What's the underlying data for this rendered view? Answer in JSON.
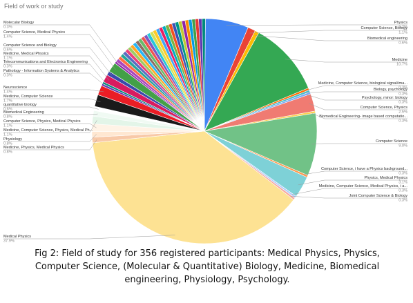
{
  "chart_data": {
    "type": "pie",
    "title": "Field of work or study",
    "slices": [
      {
        "label": "Physics",
        "percent": 6.2,
        "color": "#4285f4",
        "side": "right"
      },
      {
        "label": "Computer Science, Biology",
        "percent": 1.1,
        "color": "#ea4335",
        "side": "right"
      },
      {
        "label": "Biomedical engineering",
        "percent": 0.6,
        "color": "#fbbc04",
        "side": "right"
      },
      {
        "label": "Medicine",
        "percent": 10.7,
        "color": "#34a853",
        "side": "right"
      },
      {
        "label": "Medicine, Computer Science, biological signal/ima...",
        "percent": 0.3,
        "color": "#ff6d01",
        "side": "right"
      },
      {
        "label": "Biology, psychology",
        "percent": 0.3,
        "color": "#46bdc6",
        "side": "right"
      },
      {
        "label": "Psychology, minor: biology",
        "percent": 0.3,
        "color": "#7baaf7",
        "side": "right"
      },
      {
        "label": "Computer Science, Physics",
        "percent": 2.5,
        "color": "#f07b72",
        "side": "right"
      },
      {
        "label": "Biomedical Engineering- image based computatio...",
        "percent": 0.3,
        "color": "#fcd04f",
        "side": "right"
      },
      {
        "label": "Computer Science",
        "percent": 9.0,
        "color": "#71c287",
        "side": "right"
      },
      {
        "label": "Computer Science, i have a Physics background...",
        "percent": 0.3,
        "color": "#ff994d",
        "side": "right"
      },
      {
        "label": "Physics, Medical Physics",
        "percent": 3.1,
        "color": "#7ed1d7",
        "side": "right"
      },
      {
        "label": "Medicine, Computer Science, Medical Physics, i a...",
        "percent": 0.3,
        "color": "#b3cefb",
        "side": "right"
      },
      {
        "label": "Joint Computer Science & Biology",
        "percent": 0.3,
        "color": "#f7a7a0",
        "side": "right"
      },
      {
        "label": "Medical Physics",
        "percent": 37.9,
        "color": "#fde293",
        "side": "left"
      },
      {
        "label": "Medicine, Physics, Medical Physics",
        "percent": 0.8,
        "color": "#f8c9a8",
        "side": "left"
      },
      {
        "label": "Physiology",
        "percent": 0.8,
        "color": "#ffe7d1",
        "side": "left"
      },
      {
        "label": "Computer Science, Physics, Medical Physics",
        "percent": 1.1,
        "color": "#fff3e6",
        "side": "left"
      },
      {
        "label": "Medicine, Computer Science, Physics, Medical Ph...",
        "percent": 1.1,
        "color": "#e3f5e8",
        "side": "left"
      },
      {
        "label": "Biomedical Engineering",
        "percent": 0.8,
        "color": "#f0faf3",
        "side": "left"
      },
      {
        "label": "quantitative biology",
        "percent": 0.6,
        "color": "#ffffff",
        "side": "left"
      },
      {
        "label": "Medicine, Computer Science",
        "percent": 1.7,
        "color": "#1a1a1a",
        "side": "left"
      },
      {
        "label": "Neuroscience",
        "percent": 1.4,
        "color": "#ea1d25",
        "side": "left"
      },
      {
        "label": "Pathology - Information Systems & Analytics",
        "percent": 0.3,
        "color": "#5e35b1",
        "side": "left"
      },
      {
        "label": "Telecommunications and Electronics Engineering",
        "percent": 0.3,
        "color": "#00897b",
        "side": "left"
      },
      {
        "label": "Medicine, Medical Physics",
        "percent": 1.1,
        "color": "#d81b60",
        "side": "left"
      },
      {
        "label": "Computer Science and Biology",
        "percent": 0.6,
        "color": "#3949ab",
        "side": "left"
      },
      {
        "label": "Computer Science, Medical Physics",
        "percent": 1.4,
        "color": "#43a047",
        "side": "left"
      },
      {
        "label": "Molecular Biology",
        "percent": 0.3,
        "color": "#8e24aa",
        "side": "left"
      }
    ],
    "legend": "none (callout labels)"
  },
  "caption": "Fig 2: Field of study for 356 registered participants: Medical Physics, Physics, Computer Science, (Molecular & Quantitative) Biology, Medicine, Biomedical engineering, Physiology, Psychology."
}
